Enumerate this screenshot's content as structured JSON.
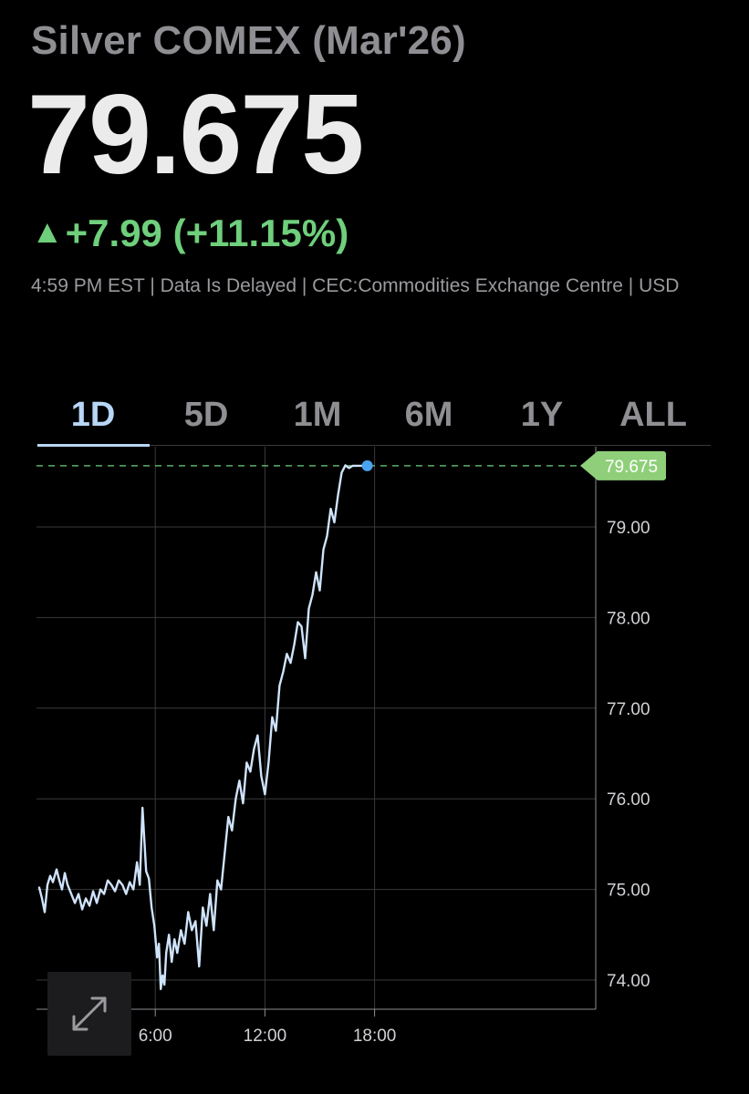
{
  "header": {
    "title": "Silver COMEX (Mar'26)",
    "price": "79.675",
    "change_arrow": "▲",
    "change_text": "+7.99 (+11.15%)",
    "meta": "4:59 PM EST | Data Is Delayed | CEC:Commodities Exchange Centre | USD"
  },
  "colors": {
    "up": "#6fcf7c",
    "line": "#cfe3fb",
    "last_dot": "#4aa3f0",
    "tab_active": "#b8d6f5",
    "grid": "#3a3a3c"
  },
  "tabs": [
    {
      "label": "1D",
      "active": true
    },
    {
      "label": "5D",
      "active": false
    },
    {
      "label": "1M",
      "active": false
    },
    {
      "label": "6M",
      "active": false
    },
    {
      "label": "1Y",
      "active": false
    },
    {
      "label": "ALL",
      "active": false
    }
  ],
  "expand_button": {
    "icon": "expand-arrows-icon"
  },
  "chart_data": {
    "type": "line",
    "x_unit": "hours",
    "xlim": [
      -0.4,
      30
    ],
    "ylim": [
      73.7,
      79.95
    ],
    "x_ticks": [
      {
        "value": 6,
        "label": "6:00"
      },
      {
        "value": 12,
        "label": "12:00"
      },
      {
        "value": 18,
        "label": "18:00"
      }
    ],
    "y_ticks": [
      {
        "value": 74.0,
        "label": "74.00"
      },
      {
        "value": 75.0,
        "label": "75.00"
      },
      {
        "value": 76.0,
        "label": "76.00"
      },
      {
        "value": 77.0,
        "label": "77.00"
      },
      {
        "value": 78.0,
        "label": "78.00"
      },
      {
        "value": 79.0,
        "label": "79.00"
      }
    ],
    "last_value": 79.675,
    "last_value_label": "79.675",
    "grid": true,
    "series": [
      {
        "x": [
          -0.35,
          -0.2,
          -0.05,
          0.1,
          0.25,
          0.4,
          0.6,
          0.75,
          0.9,
          1.05,
          1.2,
          1.4,
          1.6,
          1.8,
          2.0,
          2.2,
          2.4,
          2.6,
          2.8,
          3.0,
          3.2,
          3.4,
          3.6,
          3.8,
          4.0,
          4.2,
          4.4,
          4.6,
          4.8,
          5.0,
          5.15,
          5.3,
          5.5,
          5.65,
          5.8,
          5.95,
          6.1,
          6.2,
          6.3,
          6.4,
          6.5,
          6.6,
          6.75,
          6.9,
          7.05,
          7.2,
          7.4,
          7.6,
          7.8,
          8.0,
          8.2,
          8.4,
          8.6,
          8.8,
          9.0,
          9.2,
          9.4,
          9.6,
          9.8,
          10.0,
          10.2,
          10.4,
          10.6,
          10.8,
          11.0,
          11.2,
          11.4,
          11.6,
          11.8,
          12.0,
          12.2,
          12.4,
          12.6,
          12.8,
          13.0,
          13.2,
          13.4,
          13.6,
          13.8,
          14.0,
          14.2,
          14.4,
          14.6,
          14.8,
          15.0,
          15.2,
          15.4,
          15.6,
          15.8,
          16.0,
          16.2,
          16.4,
          16.6,
          16.8,
          17.0,
          17.2,
          17.4,
          17.6
        ],
        "y": [
          75.02,
          74.9,
          74.75,
          75.05,
          75.15,
          75.08,
          75.22,
          75.1,
          75.0,
          75.18,
          75.05,
          74.95,
          74.85,
          74.95,
          74.78,
          74.9,
          74.82,
          74.98,
          74.85,
          75.0,
          74.95,
          75.1,
          75.05,
          74.98,
          75.1,
          75.05,
          74.95,
          75.08,
          75.0,
          75.3,
          75.05,
          75.9,
          75.2,
          75.12,
          74.8,
          74.6,
          74.25,
          74.4,
          73.9,
          74.05,
          73.95,
          74.3,
          74.5,
          74.2,
          74.45,
          74.3,
          74.55,
          74.4,
          74.75,
          74.55,
          74.65,
          74.15,
          74.8,
          74.6,
          74.95,
          74.55,
          75.1,
          75.0,
          75.4,
          75.8,
          75.65,
          76.0,
          76.2,
          75.95,
          76.4,
          76.3,
          76.55,
          76.7,
          76.25,
          76.05,
          76.4,
          76.9,
          76.75,
          77.25,
          77.4,
          77.6,
          77.5,
          77.7,
          77.95,
          77.9,
          77.55,
          78.1,
          78.25,
          78.5,
          78.3,
          78.75,
          78.9,
          79.2,
          79.05,
          79.35,
          79.6,
          79.68,
          79.65,
          79.675,
          79.675,
          79.675,
          79.675,
          79.675
        ]
      }
    ]
  }
}
